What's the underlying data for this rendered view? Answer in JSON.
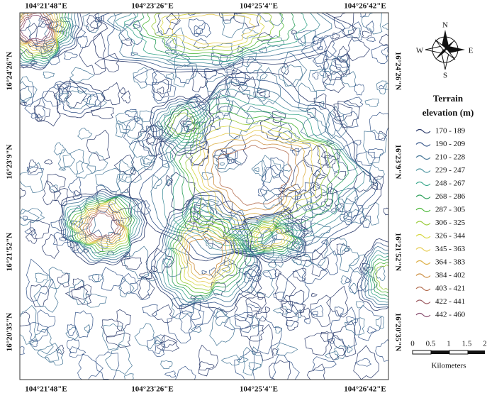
{
  "map": {
    "x_labels_top": [
      "104°21'48\"E",
      "104°23'26\"E",
      "104°25'4\"E",
      "104°26'42\"E"
    ],
    "x_labels_bottom": [
      "104°21'48\"E",
      "104°23'26\"E",
      "104°25'4\"E",
      "104°26'42\"E"
    ],
    "y_labels_left": [
      "16°24'26\"N",
      "16°23'9\"N",
      "16°21'52\"N",
      "16°20'35\"N"
    ],
    "y_labels_right": [
      "16°24'26\"N",
      "16°23'9\"N",
      "16°21'52\"N",
      "16°20'35\"N"
    ],
    "compass": {
      "n": "N",
      "e": "E",
      "s": "S",
      "w": "W"
    },
    "legend": {
      "title_line1": "Terrain",
      "title_line2": "elevation (m)",
      "entries": [
        {
          "label": "170 - 189",
          "color": "#2b3a6b"
        },
        {
          "label": "190 - 209",
          "color": "#36568a"
        },
        {
          "label": "210 - 228",
          "color": "#437596"
        },
        {
          "label": "229 - 247",
          "color": "#4c95a0"
        },
        {
          "label": "248 - 267",
          "color": "#3aa88c"
        },
        {
          "label": "268 - 286",
          "color": "#2ea05c"
        },
        {
          "label": "287 - 305",
          "color": "#4cb83a"
        },
        {
          "label": "306 - 325",
          "color": "#9acb3a"
        },
        {
          "label": "326 - 344",
          "color": "#d6d640"
        },
        {
          "label": "345 - 363",
          "color": "#e6cc52"
        },
        {
          "label": "364 - 383",
          "color": "#dcae42"
        },
        {
          "label": "384 - 402",
          "color": "#cc8e40"
        },
        {
          "label": "403 - 421",
          "color": "#b46e50"
        },
        {
          "label": "422 - 441",
          "color": "#9c5a60"
        },
        {
          "label": "442 - 460",
          "color": "#864a6c"
        }
      ]
    },
    "scale_bar": {
      "labels": [
        "0",
        "0.5",
        "1",
        "1.5",
        "2"
      ],
      "unit": "Kilometers"
    }
  }
}
